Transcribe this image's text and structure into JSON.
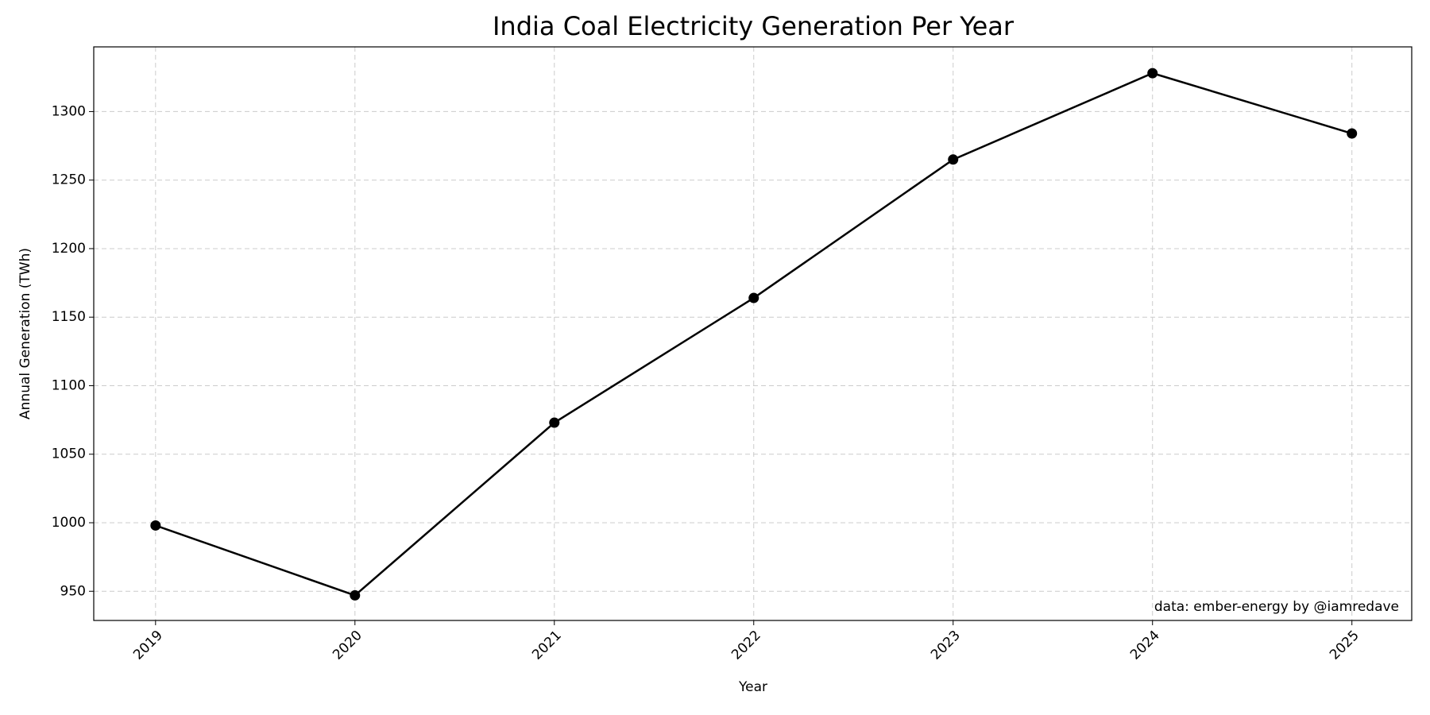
{
  "chart_data": {
    "type": "line",
    "title": "India Coal Electricity Generation Per Year",
    "xlabel": "Year",
    "ylabel": "Annual Generation (TWh)",
    "annotation": "data: ember-energy by @iamredave",
    "x": [
      2019,
      2020,
      2021,
      2022,
      2023,
      2024,
      2025
    ],
    "series": [
      {
        "color": "#000000",
        "values": [
          998,
          947,
          1073,
          1164,
          1265,
          1328,
          1284
        ]
      }
    ],
    "xlim": [
      2018.69,
      2025.3
    ],
    "xticks": [
      2019,
      2020,
      2021,
      2022,
      2023,
      2024,
      2025
    ],
    "ylim": [
      928.7,
      1347.2
    ],
    "yticks": [
      950,
      1000,
      1050,
      1100,
      1150,
      1200,
      1250,
      1300
    ],
    "grid": true
  }
}
